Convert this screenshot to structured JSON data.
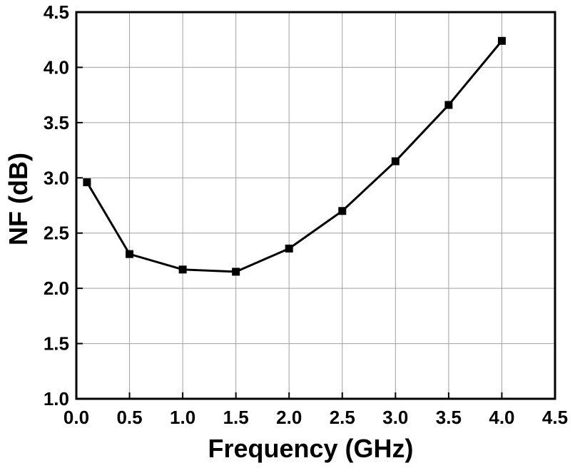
{
  "chart_data": {
    "type": "line",
    "title": "",
    "xlabel": "Frequency (GHz)",
    "ylabel": "NF (dB)",
    "xlim": [
      0.0,
      4.5
    ],
    "ylim": [
      1.0,
      4.5
    ],
    "x_ticks": [
      "0.0",
      "0.5",
      "1.0",
      "1.5",
      "2.0",
      "2.5",
      "3.0",
      "3.5",
      "4.0",
      "4.5"
    ],
    "y_ticks": [
      "1.0",
      "1.5",
      "2.0",
      "2.5",
      "3.0",
      "3.5",
      "4.0",
      "4.5"
    ],
    "grid": true,
    "marker": "square",
    "line_color": "#000000",
    "grid_color": "#a0a0a0",
    "series": [
      {
        "x": [
          0.1,
          0.5,
          1.0,
          1.5,
          2.0,
          2.5,
          3.0,
          3.5,
          4.0
        ],
        "values": [
          2.96,
          2.31,
          2.17,
          2.15,
          2.36,
          2.7,
          3.15,
          3.66,
          4.24
        ]
      }
    ]
  }
}
